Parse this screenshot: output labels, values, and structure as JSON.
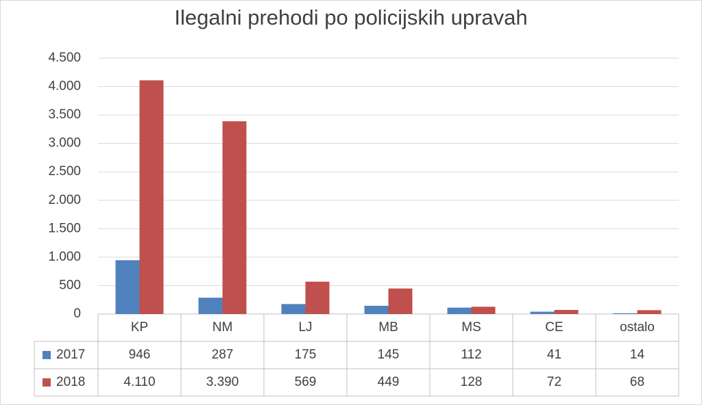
{
  "chart_data": {
    "type": "bar",
    "title": "Ilegalni prehodi po policijskih upravah",
    "categories": [
      "KP",
      "NM",
      "LJ",
      "MB",
      "MS",
      "CE",
      "ostalo"
    ],
    "series": [
      {
        "name": "2017",
        "color": "#4f81bd",
        "values": [
          946,
          287,
          175,
          145,
          112,
          41,
          14
        ]
      },
      {
        "name": "2018",
        "color": "#c0504d",
        "values": [
          4110,
          3390,
          569,
          449,
          128,
          72,
          68
        ],
        "value_labels": [
          "4.110",
          "3.390",
          "569",
          "449",
          "128",
          "72",
          "68"
        ]
      }
    ],
    "ylim": [
      0,
      4500
    ],
    "yticks": [
      0,
      500,
      {
        "value": 1000,
        "label": "1.000"
      },
      {
        "value": 1500,
        "label": "1.500"
      },
      {
        "value": 2000,
        "label": "2.000"
      },
      {
        "value": 2500,
        "label": "2.500"
      },
      {
        "value": 3000,
        "label": "3.000"
      },
      {
        "value": 3500,
        "label": "3.500"
      },
      {
        "value": 4000,
        "label": "4.000"
      },
      {
        "value": 4500,
        "label": "4.500"
      }
    ],
    "grid": true
  }
}
